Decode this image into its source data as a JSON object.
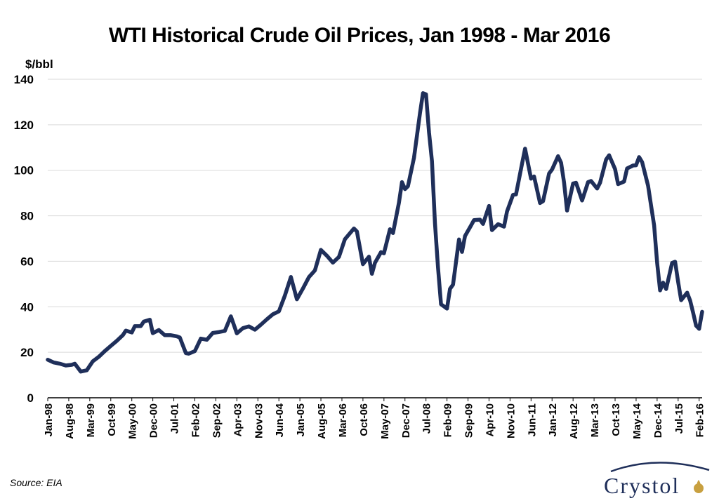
{
  "chart_data": {
    "type": "line",
    "title": "WTI Historical Crude Oil Prices, Jan 1998 - Mar 2016",
    "ylabel": "$/bbl",
    "xlabel": "",
    "ylim": [
      0,
      140
    ],
    "yticks": [
      0,
      20,
      40,
      60,
      80,
      100,
      120,
      140
    ],
    "grid": true,
    "line_color": "#1f2f5a",
    "x_tick_labels": [
      "Jan-98",
      "Aug-98",
      "Mar-99",
      "Oct-99",
      "May-00",
      "Dec-00",
      "Jul-01",
      "Feb-02",
      "Sep-02",
      "Apr-03",
      "Nov-03",
      "Jun-04",
      "Jan-05",
      "Aug-05",
      "Mar-06",
      "Oct-06",
      "May-07",
      "Dec-07",
      "Jul-08",
      "Feb-09",
      "Sep-09",
      "Apr-10",
      "Nov-10",
      "Jun-11",
      "Jan-12",
      "Aug-12",
      "Mar-13",
      "Oct-13",
      "May-14",
      "Dec-14",
      "Jul-15",
      "Feb-16"
    ],
    "series": [
      {
        "x": [
          "1998-01",
          "1998-03",
          "1998-05",
          "1998-07",
          "1998-09",
          "1998-10",
          "1998-12",
          "1999-02",
          "1999-04",
          "1999-06",
          "1999-08",
          "1999-10",
          "1999-12",
          "2000-02",
          "2000-03",
          "2000-05",
          "2000-06",
          "2000-08",
          "2000-09",
          "2000-11",
          "2000-12",
          "2001-02",
          "2001-04",
          "2001-06",
          "2001-08",
          "2001-09",
          "2001-11",
          "2001-12",
          "2002-02",
          "2002-04",
          "2002-06",
          "2002-08",
          "2002-10",
          "2002-12",
          "2003-02",
          "2003-04",
          "2003-06",
          "2003-08",
          "2003-10",
          "2003-12",
          "2004-02",
          "2004-04",
          "2004-06",
          "2004-08",
          "2004-10",
          "2004-12",
          "2005-02",
          "2005-04",
          "2005-06",
          "2005-08",
          "2005-10",
          "2005-12",
          "2006-02",
          "2006-04",
          "2006-07",
          "2006-08",
          "2006-10",
          "2006-12",
          "2007-01",
          "2007-02",
          "2007-04",
          "2007-05",
          "2007-07",
          "2007-08",
          "2007-10",
          "2007-11",
          "2007-12",
          "2008-01",
          "2008-03",
          "2008-05",
          "2008-06",
          "2008-07",
          "2008-08",
          "2008-09",
          "2008-10",
          "2008-11",
          "2008-12",
          "2009-02",
          "2009-03",
          "2009-04",
          "2009-06",
          "2009-07",
          "2009-08",
          "2009-10",
          "2009-11",
          "2010-01",
          "2010-02",
          "2010-04",
          "2010-05",
          "2010-07",
          "2010-09",
          "2010-10",
          "2010-12",
          "2011-01",
          "2011-03",
          "2011-04",
          "2011-06",
          "2011-07",
          "2011-09",
          "2011-10",
          "2011-12",
          "2012-01",
          "2012-03",
          "2012-04",
          "2012-05",
          "2012-06",
          "2012-08",
          "2012-09",
          "2012-11",
          "2013-01",
          "2013-02",
          "2013-04",
          "2013-05",
          "2013-07",
          "2013-08",
          "2013-10",
          "2013-11",
          "2014-01",
          "2014-02",
          "2014-04",
          "2014-05",
          "2014-06",
          "2014-07",
          "2014-09",
          "2014-10",
          "2014-11",
          "2014-12",
          "2015-01",
          "2015-02",
          "2015-03",
          "2015-05",
          "2015-06",
          "2015-07",
          "2015-08",
          "2015-10",
          "2015-11",
          "2015-12",
          "2016-01",
          "2016-02",
          "2016-03"
        ],
        "values": [
          16.7,
          15.5,
          15.0,
          14.2,
          14.5,
          15.0,
          11.5,
          12.1,
          16.0,
          18.0,
          20.5,
          22.8,
          25.0,
          27.5,
          29.5,
          28.7,
          31.5,
          31.5,
          33.5,
          34.3,
          28.4,
          29.8,
          27.5,
          27.5,
          27.0,
          26.5,
          19.6,
          19.4,
          20.5,
          26.0,
          25.5,
          28.5,
          28.9,
          29.4,
          35.8,
          28.3,
          30.6,
          31.4,
          29.9,
          32.1,
          34.5,
          36.7,
          38.0,
          44.9,
          53.1,
          43.3,
          48.0,
          53.0,
          56.0,
          65.0,
          62.4,
          59.4,
          61.9,
          69.7,
          74.4,
          73.1,
          58.7,
          62.0,
          54.5,
          59.3,
          64.0,
          63.5,
          74.1,
          72.4,
          85.8,
          94.8,
          91.7,
          93.0,
          105.5,
          125.0,
          133.9,
          133.4,
          116.7,
          104.0,
          76.6,
          57.3,
          41.1,
          39.2,
          47.9,
          49.7,
          69.6,
          64.1,
          71.1,
          75.7,
          78.1,
          78.3,
          76.4,
          84.3,
          73.7,
          76.3,
          75.2,
          81.9,
          89.2,
          89.4,
          102.9,
          109.5,
          96.3,
          97.3,
          85.6,
          86.4,
          98.6,
          100.3,
          106.2,
          103.3,
          94.7,
          82.3,
          94.2,
          94.5,
          86.7,
          94.8,
          95.3,
          92.0,
          94.5,
          104.7,
          106.6,
          100.5,
          93.9,
          95.0,
          100.8,
          102.1,
          102.2,
          105.8,
          103.6,
          93.2,
          84.4,
          75.8,
          59.3,
          47.2,
          50.6,
          47.8,
          59.3,
          59.8,
          50.9,
          42.9,
          46.2,
          42.7,
          37.3,
          31.7,
          30.3,
          37.8
        ]
      }
    ]
  },
  "source": "Source: EIA",
  "logo_text": "Crystol"
}
